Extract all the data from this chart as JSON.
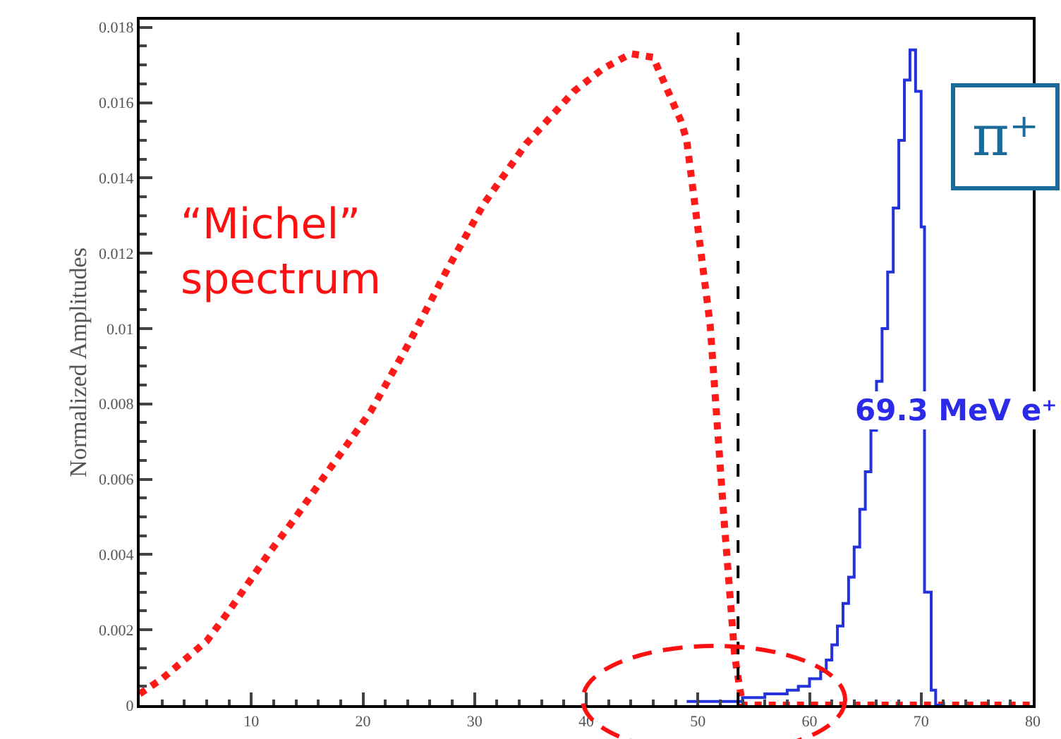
{
  "chart_data": {
    "type": "line",
    "ylabel": "Normalized Amplitudes",
    "series": [
      {
        "type": "line",
        "color": "#ff1a1a",
        "line_style": "dotted",
        "x": [
          0,
          2,
          4,
          6,
          8,
          11.5,
          14,
          16.6,
          20.7,
          24.1,
          27.6,
          30.8,
          34.6,
          38.9,
          41.5,
          44,
          46,
          48.5,
          49,
          51.1,
          52.3,
          53.3,
          54,
          56,
          60,
          65,
          70,
          75,
          80
        ],
        "values": [
          0.0003,
          0.0007,
          0.0012,
          0.0017,
          0.0025,
          0.004,
          0.005,
          0.0061,
          0.0078,
          0.0096,
          0.0116,
          0.0133,
          0.0149,
          0.0163,
          0.0169,
          0.0173,
          0.0172,
          0.0155,
          0.015,
          0.0101,
          0.0051,
          0.0013,
          0,
          0,
          0,
          0,
          0,
          0,
          0
        ]
      },
      {
        "type": "step",
        "color": "#2233dd",
        "x": [
          49,
          54,
          56,
          58,
          59,
          60,
          61,
          61.5,
          62,
          62.5,
          63,
          63.5,
          64,
          64.5,
          65,
          65.5,
          66,
          66.5,
          67,
          67.5,
          68,
          68.5,
          69,
          69.5,
          70,
          70.3,
          70.9,
          71.3,
          72
        ],
        "values": [
          0.0001,
          0.0002,
          0.0003,
          0.0004,
          0.0005,
          0.0007,
          0.0009,
          0.0012,
          0.0016,
          0.0021,
          0.0027,
          0.0034,
          0.0042,
          0.0052,
          0.0062,
          0.0073,
          0.0086,
          0.01,
          0.0115,
          0.0132,
          0.015,
          0.0166,
          0.0174,
          0.0163,
          0.0127,
          0.003,
          0.0004,
          0,
          0
        ]
      }
    ],
    "xlim": [
      0,
      80
    ],
    "xticks": [
      10,
      20,
      30,
      40,
      50,
      60,
      70,
      80
    ],
    "ylim": [
      0,
      0.0182
    ],
    "yticks": [
      0,
      0.002,
      0.004,
      0.006,
      0.008,
      0.01,
      0.012,
      0.014,
      0.016,
      0.018
    ],
    "ref_lines": [
      {
        "axis": "x",
        "value": 53.6,
        "color": "#000000",
        "line_style": "dashed"
      }
    ],
    "annotations": [
      "“Michel”\nspectrum",
      "69.3 MeV e⁺",
      "π⁺"
    ],
    "grid": false
  }
}
